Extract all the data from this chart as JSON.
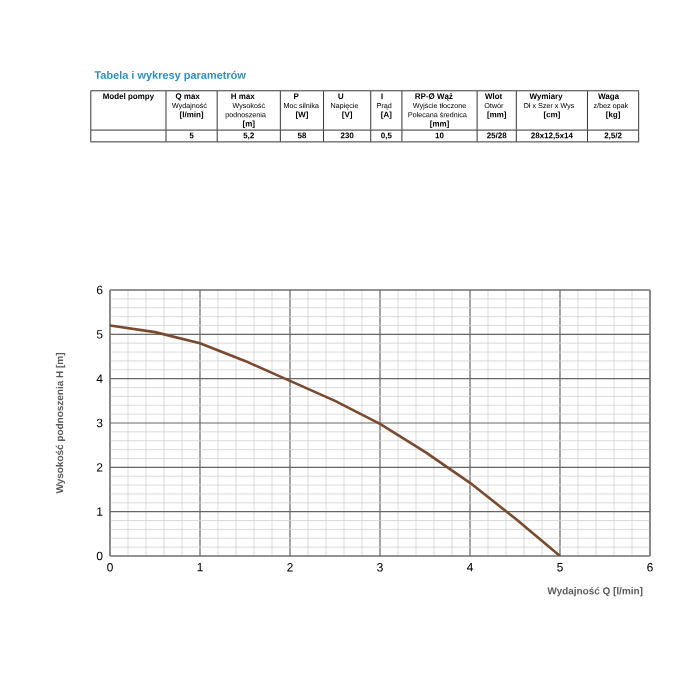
{
  "chart_data": {
    "type": "line",
    "title": "Tabela i wykresy parametrów",
    "annotations": [
      "Model pompy",
      "Q max",
      "Wydajność",
      "[l/min]",
      "5",
      "H max",
      "Wysokość podnoszenia",
      "[m]",
      "5,2",
      "P",
      "Moc silnika",
      "[W]",
      "58",
      "U",
      "Napięcie",
      "[V]",
      "230",
      "I",
      "Prąd",
      "[A]",
      "0,5",
      "RP-Ø Wąż",
      "Wyjście tłoczone Polecana średnica",
      "[mm]",
      "10",
      "Wlot",
      "Otwór",
      "[mm]",
      "25/28",
      "Wymiary",
      "Dł x Szer x Wys",
      "[cm]",
      "28x12,5x14",
      "Waga",
      "z/bez opak",
      "[kg]",
      "2,5/2"
    ],
    "xlabel": "Wydajność Q [l/min]",
    "ylabel": "Wysokość podnoszenia H [m]",
    "x": [
      0,
      0.5,
      1,
      1.5,
      2,
      2.5,
      3,
      3.5,
      4,
      4.5,
      5
    ],
    "series": [
      {
        "color": "#7a4a2e",
        "values": [
          5.2,
          5.05,
          4.8,
          4.4,
          3.95,
          3.5,
          2.98,
          2.35,
          1.65,
          0.85,
          0
        ]
      }
    ],
    "xlim": [
      0,
      6
    ],
    "ylim": [
      0,
      6
    ],
    "xticks": [
      0,
      1,
      2,
      3,
      4,
      5,
      6
    ],
    "yticks": [
      0,
      1,
      2,
      3,
      4,
      5,
      6
    ],
    "grid": true,
    "marker": "none",
    "line_style": "solid"
  }
}
